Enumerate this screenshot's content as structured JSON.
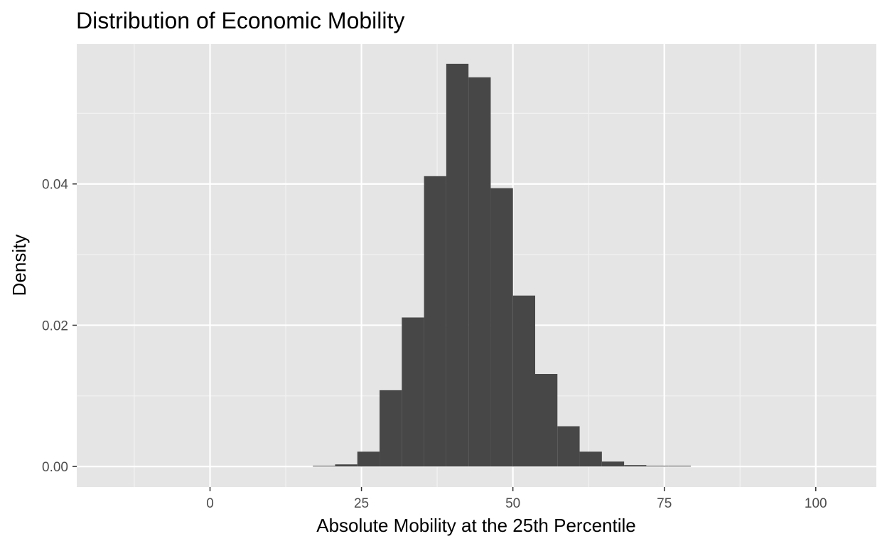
{
  "chart_data": {
    "type": "bar",
    "title": "Distribution of Economic Mobility",
    "xlabel": "Absolute Mobility at the 25th Percentile",
    "ylabel": "Density",
    "xlim": [
      -22,
      110
    ],
    "ylim": [
      -0.0029,
      0.0598
    ],
    "x_ticks": [
      0,
      25,
      50,
      75,
      100
    ],
    "x_tick_labels": [
      "0",
      "25",
      "50",
      "75",
      "100"
    ],
    "y_ticks": [
      0.0,
      0.02,
      0.04
    ],
    "y_tick_labels": [
      "0.00",
      "0.02",
      "0.04"
    ],
    "bin_width": 3.67,
    "bins": [
      {
        "x0": 16.98,
        "x1": 20.65,
        "density": 0.0001
      },
      {
        "x0": 20.65,
        "x1": 24.32,
        "density": 0.0003
      },
      {
        "x0": 24.32,
        "x1": 27.99,
        "density": 0.0021
      },
      {
        "x0": 27.99,
        "x1": 31.66,
        "density": 0.0108
      },
      {
        "x0": 31.66,
        "x1": 35.33,
        "density": 0.0211
      },
      {
        "x0": 35.33,
        "x1": 39.0,
        "density": 0.0411
      },
      {
        "x0": 39.0,
        "x1": 42.67,
        "density": 0.057
      },
      {
        "x0": 42.67,
        "x1": 46.34,
        "density": 0.0551
      },
      {
        "x0": 46.34,
        "x1": 50.01,
        "density": 0.0394
      },
      {
        "x0": 50.01,
        "x1": 53.68,
        "density": 0.0242
      },
      {
        "x0": 53.68,
        "x1": 57.35,
        "density": 0.0131
      },
      {
        "x0": 57.35,
        "x1": 61.02,
        "density": 0.0057
      },
      {
        "x0": 61.02,
        "x1": 64.69,
        "density": 0.0021
      },
      {
        "x0": 64.69,
        "x1": 68.36,
        "density": 0.0007
      },
      {
        "x0": 68.36,
        "x1": 72.03,
        "density": 0.0002
      },
      {
        "x0": 72.03,
        "x1": 75.7,
        "density": 0.0001
      },
      {
        "x0": 75.7,
        "x1": 79.37,
        "density": 0.0001
      }
    ],
    "bar_color": "#474747",
    "panel_background": "#e5e5e5",
    "grid": true,
    "legend": "none"
  }
}
